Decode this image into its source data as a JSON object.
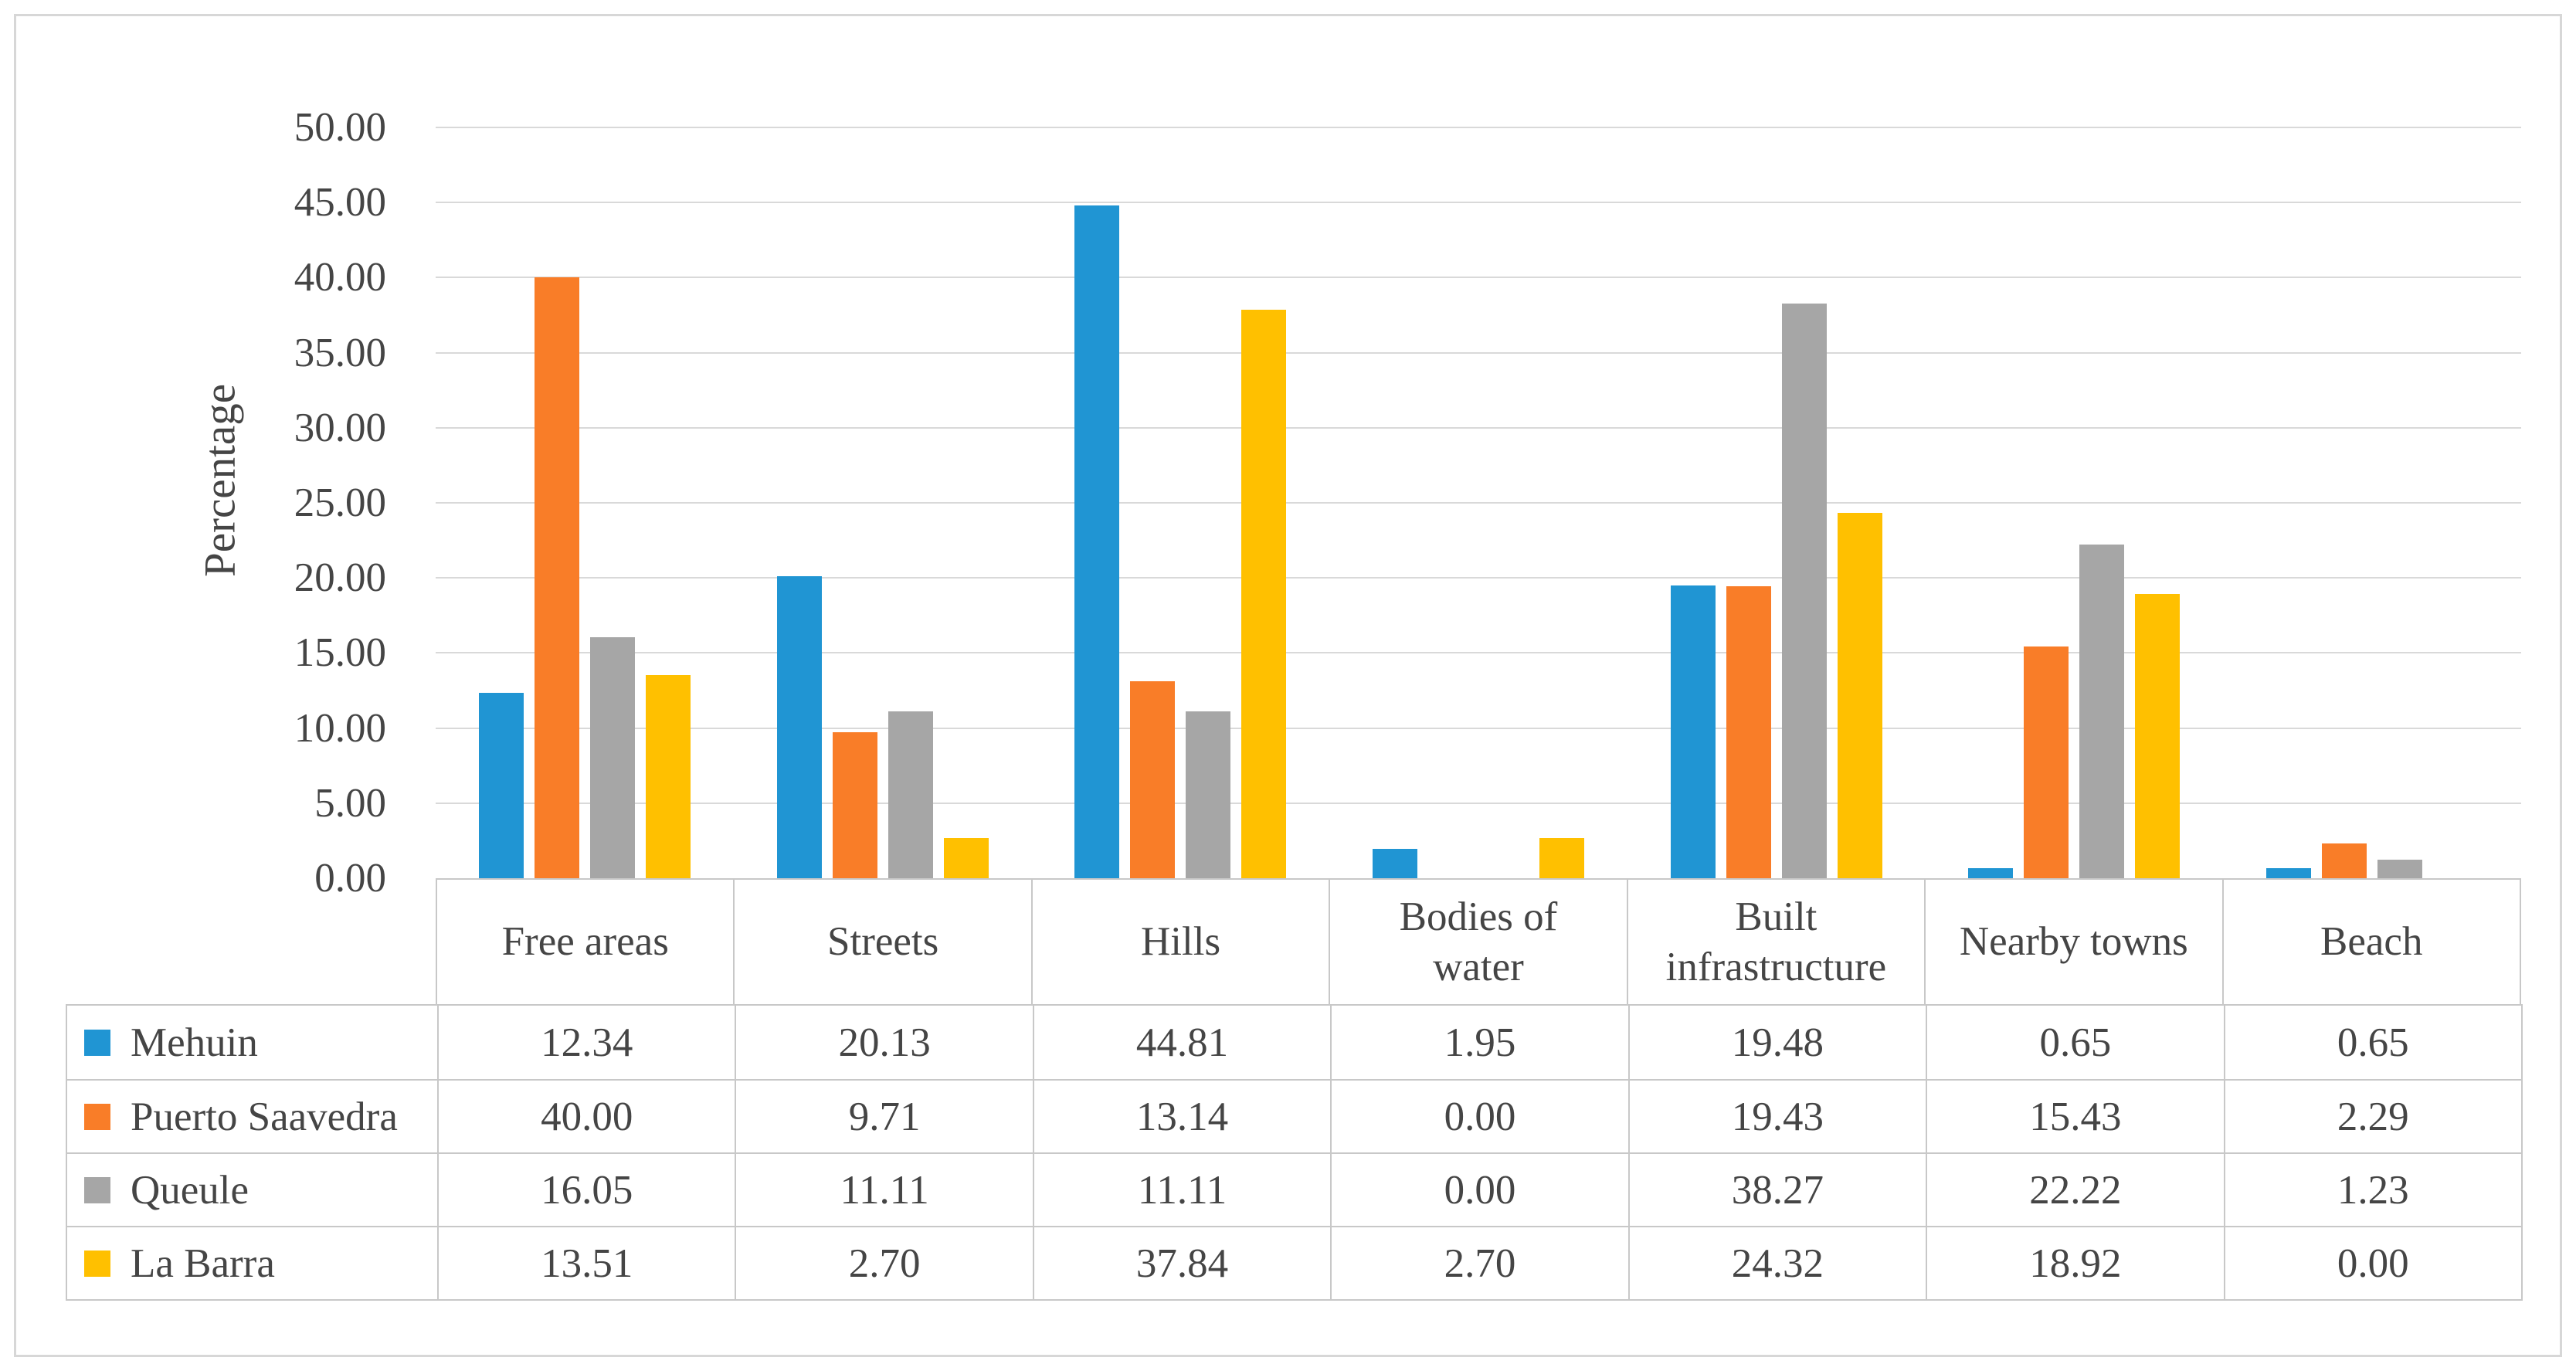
{
  "figure": {
    "y_axis_title": "Percentage",
    "y_ticks": [
      "50.00",
      "45.00",
      "40.00",
      "35.00",
      "30.00",
      "25.00",
      "20.00",
      "15.00",
      "10.00",
      "5.00",
      "0.00"
    ],
    "colors": {
      "text": "#454545",
      "gridline": "#d9d9d9",
      "table_border": "#c8c8c8",
      "figure_border": "#d7d7d7"
    }
  },
  "chart_data": {
    "type": "bar",
    "title": "",
    "xlabel": "",
    "ylabel": "Percentage",
    "ylim": [
      0,
      50
    ],
    "ytick_step": 5,
    "grid": true,
    "legend_position": "data-table-left-column",
    "categories": [
      "Free areas",
      "Streets",
      "Hills",
      "Bodies of water",
      "Built infrastructure",
      "Nearby towns",
      "Beach"
    ],
    "series": [
      {
        "name": "Mehuin",
        "color": "#2095d3",
        "values": [
          12.34,
          20.13,
          44.81,
          1.95,
          19.48,
          0.65,
          0.65
        ]
      },
      {
        "name": "Puerto Saavedra",
        "color": "#f97d28",
        "values": [
          40.0,
          9.71,
          13.14,
          0.0,
          19.43,
          15.43,
          2.29
        ]
      },
      {
        "name": "Queule",
        "color": "#a6a6a6",
        "values": [
          16.05,
          11.11,
          11.11,
          0.0,
          38.27,
          22.22,
          1.23
        ]
      },
      {
        "name": "La Barra",
        "color": "#ffc000",
        "values": [
          13.51,
          2.7,
          37.84,
          2.7,
          24.32,
          18.92,
          0.0
        ]
      }
    ]
  }
}
